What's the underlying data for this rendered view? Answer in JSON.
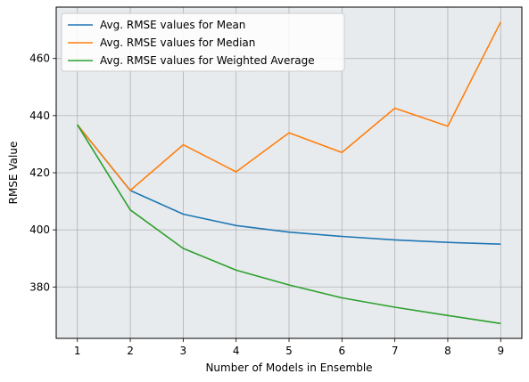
{
  "chart_data": {
    "type": "line",
    "xlabel": "Number of Models in Ensemble",
    "ylabel": "RMSE Value",
    "x": [
      1,
      2,
      3,
      4,
      5,
      6,
      7,
      8,
      9
    ],
    "xlim": [
      0.6,
      9.4
    ],
    "ylim": [
      362,
      478
    ],
    "xticks": [
      1,
      2,
      3,
      4,
      5,
      6,
      7,
      8,
      9
    ],
    "yticks": [
      380,
      400,
      420,
      440,
      460
    ],
    "grid": true,
    "legend_position": "top-left",
    "background": "#e8ebee",
    "series": [
      {
        "name": "Avg. RMSE values for Mean",
        "color": "#1f77b4",
        "values": [
          436.8,
          413.8,
          405.5,
          401.5,
          399.2,
          397.7,
          396.5,
          395.6,
          395.0
        ]
      },
      {
        "name": "Avg. RMSE values for Median",
        "color": "#ff7f0e",
        "values": [
          436.8,
          413.8,
          429.8,
          420.3,
          434.0,
          427.1,
          442.6,
          436.3,
          472.8
        ]
      },
      {
        "name": "Avg. RMSE values for Weighted Average",
        "color": "#2ca02c",
        "values": [
          436.8,
          407.0,
          393.5,
          385.9,
          380.7,
          376.2,
          372.9,
          370.0,
          367.2
        ]
      }
    ]
  }
}
